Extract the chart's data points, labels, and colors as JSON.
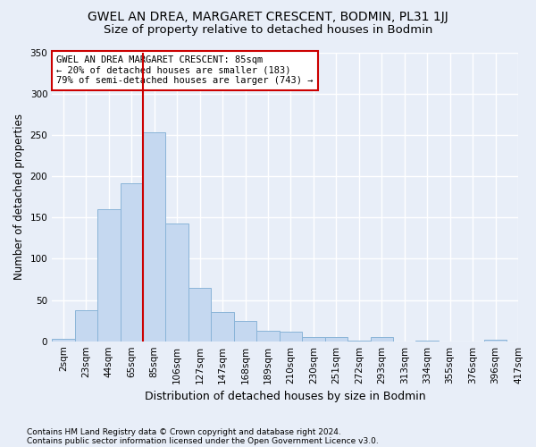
{
  "title": "GWEL AN DREA, MARGARET CRESCENT, BODMIN, PL31 1JJ",
  "subtitle": "Size of property relative to detached houses in Bodmin",
  "xlabel": "Distribution of detached houses by size in Bodmin",
  "ylabel": "Number of detached properties",
  "footnote1": "Contains HM Land Registry data © Crown copyright and database right 2024.",
  "footnote2": "Contains public sector information licensed under the Open Government Licence v3.0.",
  "annotation_title": "GWEL AN DREA MARGARET CRESCENT: 85sqm",
  "annotation_line2": "← 20% of detached houses are smaller (183)",
  "annotation_line3": "79% of semi-detached houses are larger (743) →",
  "bar_labels": [
    "2sqm",
    "23sqm",
    "44sqm",
    "65sqm",
    "85sqm",
    "106sqm",
    "127sqm",
    "147sqm",
    "168sqm",
    "189sqm",
    "210sqm",
    "230sqm",
    "251sqm",
    "272sqm",
    "293sqm",
    "313sqm",
    "334sqm",
    "355sqm",
    "376sqm",
    "396sqm",
    "417sqm"
  ],
  "bar_heights": [
    3,
    38,
    160,
    192,
    254,
    143,
    65,
    35,
    25,
    13,
    12,
    5,
    5,
    1,
    5,
    0,
    1,
    0,
    0,
    2
  ],
  "bar_color": "#c5d8f0",
  "bar_edge_color": "#8ab4d8",
  "marker_label": "85sqm",
  "marker_line_color": "#cc0000",
  "ylim": [
    0,
    350
  ],
  "yticks": [
    0,
    50,
    100,
    150,
    200,
    250,
    300,
    350
  ],
  "background_color": "#e8eef8",
  "grid_color": "#ffffff",
  "title_fontsize": 10,
  "subtitle_fontsize": 9.5
}
